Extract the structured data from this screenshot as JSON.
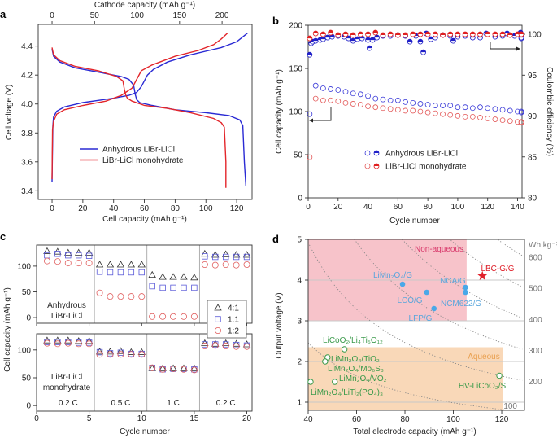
{
  "chart_data": [
    {
      "panel_label": "a",
      "type": "line",
      "xlabel": "Cell capacity (mAh g⁻¹)",
      "x2label": "Cathode capacity (mAh g⁻¹)",
      "ylabel": "Cell voltage (V)",
      "xlim": [
        -9,
        130
      ],
      "ylim": [
        3.34,
        4.55
      ],
      "xticks": [
        "0",
        "20",
        "40",
        "60",
        "80",
        "100",
        "120"
      ],
      "x2ticks": [
        "0",
        "50",
        "100",
        "150",
        "200"
      ],
      "cathode_per_cell_capacity": 1.81,
      "yticks": [
        "3.4",
        "3.6",
        "3.8",
        "4.0",
        "4.2",
        "4.4"
      ],
      "legend": "center-left",
      "series": [
        {
          "name": "Anhydrous LiBr-LiCl",
          "color": "#2a2ad4",
          "charge": [
            [
              0,
              3.46
            ],
            [
              0.5,
              3.85
            ],
            [
              1,
              3.91
            ],
            [
              3,
              3.95
            ],
            [
              8,
              3.98
            ],
            [
              20,
              4.01
            ],
            [
              40,
              4.04
            ],
            [
              50,
              4.06
            ],
            [
              55,
              4.08
            ],
            [
              58,
              4.12
            ],
            [
              62,
              4.2
            ],
            [
              66,
              4.24
            ],
            [
              75,
              4.29
            ],
            [
              90,
              4.34
            ],
            [
              110,
              4.39
            ],
            [
              120,
              4.43
            ],
            [
              127,
              4.49
            ]
          ],
          "discharge": [
            [
              0,
              4.38
            ],
            [
              1,
              4.33
            ],
            [
              5,
              4.29
            ],
            [
              15,
              4.25
            ],
            [
              30,
              4.22
            ],
            [
              45,
              4.19
            ],
            [
              50,
              4.17
            ],
            [
              53,
              4.13
            ],
            [
              54,
              4.07
            ],
            [
              55,
              4.03
            ],
            [
              57,
              4.01
            ],
            [
              65,
              3.99
            ],
            [
              80,
              3.96
            ],
            [
              100,
              3.94
            ],
            [
              115,
              3.92
            ],
            [
              122,
              3.89
            ],
            [
              124,
              3.85
            ],
            [
              125,
              3.6
            ],
            [
              126,
              3.43
            ]
          ]
        },
        {
          "name": "LiBr-LiCl monohydrate",
          "color": "#e3262b",
          "charge": [
            [
              0,
              3.48
            ],
            [
              0.3,
              3.82
            ],
            [
              1,
              3.88
            ],
            [
              3,
              3.93
            ],
            [
              8,
              3.96
            ],
            [
              20,
              3.99
            ],
            [
              35,
              4.02
            ],
            [
              45,
              4.06
            ],
            [
              52,
              4.11
            ],
            [
              55,
              4.17
            ],
            [
              58,
              4.23
            ],
            [
              65,
              4.27
            ],
            [
              80,
              4.33
            ],
            [
              95,
              4.37
            ],
            [
              105,
              4.41
            ],
            [
              110,
              4.45
            ],
            [
              114,
              4.49
            ]
          ],
          "discharge": [
            [
              0,
              4.39
            ],
            [
              1,
              4.34
            ],
            [
              5,
              4.3
            ],
            [
              15,
              4.26
            ],
            [
              30,
              4.23
            ],
            [
              42,
              4.19
            ],
            [
              46,
              4.16
            ],
            [
              47,
              4.1
            ],
            [
              48,
              4.06
            ],
            [
              49,
              4.04
            ],
            [
              52,
              4.02
            ],
            [
              60,
              3.99
            ],
            [
              75,
              3.97
            ],
            [
              90,
              3.94
            ],
            [
              105,
              3.9
            ],
            [
              110,
              3.87
            ],
            [
              112,
              3.84
            ],
            [
              113,
              3.6
            ],
            [
              113,
              3.42
            ]
          ]
        }
      ]
    },
    {
      "panel_label": "b",
      "type": "scatter",
      "xlabel": "Cycle number",
      "ylabel": "Cell capacity (mAh g⁻¹)",
      "y2label": "Coulombic efficiency (%)",
      "xlim": [
        0,
        143
      ],
      "ylim": [
        0,
        200
      ],
      "y2lim": [
        80,
        101.1
      ],
      "xticks": [
        "0",
        "20",
        "40",
        "60",
        "80",
        "100",
        "120",
        "140"
      ],
      "yticks": [
        "0",
        "50",
        "100",
        "150",
        "200"
      ],
      "y2ticks": [
        "80",
        "85",
        "90",
        "95",
        "100"
      ],
      "legend": "center",
      "series": [
        {
          "name": "Anhydrous LiBr-LiCl",
          "metric": "capacity",
          "axis": "left",
          "marker": "open-circle",
          "color": "#3b3bd8",
          "x": [
            1,
            5,
            10,
            15,
            20,
            25,
            30,
            35,
            40,
            45,
            50,
            55,
            60,
            65,
            70,
            75,
            80,
            85,
            90,
            95,
            100,
            105,
            110,
            115,
            120,
            125,
            130,
            135,
            140,
            145,
            150
          ],
          "y": [
            97,
            130,
            127,
            126,
            125,
            123,
            121,
            120,
            118,
            115,
            114,
            113,
            113,
            111,
            110,
            109,
            108,
            107,
            107,
            107,
            105,
            105,
            104,
            105,
            104,
            103,
            102,
            101,
            100,
            99,
            100
          ]
        },
        {
          "name": "LiBr-LiCl monohydrate",
          "metric": "capacity",
          "axis": "left",
          "marker": "open-circle",
          "color": "#e35a5a",
          "x": [
            1,
            5,
            10,
            15,
            20,
            25,
            30,
            35,
            40,
            45,
            50,
            55,
            60,
            65,
            70,
            75,
            80,
            85,
            90,
            95,
            100,
            105,
            110,
            115,
            120,
            125,
            130,
            135,
            140,
            145,
            150
          ],
          "y": [
            47,
            115,
            113,
            113,
            112,
            110,
            109,
            108,
            106,
            105,
            104,
            103,
            102,
            101,
            101,
            100,
            99,
            98,
            97,
            96,
            95,
            94,
            94,
            93,
            92,
            91,
            90,
            89,
            88,
            88,
            87
          ]
        },
        {
          "name": "Anhydrous LiBr-LiCl",
          "metric": "coulombic_efficiency",
          "axis": "right",
          "marker": "half-filled-circle",
          "color": "#2020c8",
          "x": [
            1,
            2,
            3,
            5,
            8,
            10,
            13,
            16,
            20,
            24,
            27,
            30,
            33,
            36,
            40,
            41,
            43,
            46,
            50,
            55,
            60,
            65,
            68,
            72,
            75,
            77,
            79,
            82,
            85,
            90,
            95,
            97,
            100,
            105,
            110,
            115,
            119,
            125,
            130,
            133,
            138,
            142,
            145,
            148,
            150
          ],
          "y": [
            97.5,
            98.9,
            99.1,
            99.2,
            99.3,
            99.4,
            99.6,
            99.7,
            99.8,
            99.7,
            99.5,
            99.2,
            99.4,
            99.5,
            99.3,
            98.3,
            99.3,
            99.6,
            99.8,
            99.8,
            99.9,
            99.8,
            99.1,
            99.8,
            99.1,
            97.8,
            100.1,
            99.4,
            99.6,
            99.9,
            99.8,
            99.2,
            99.7,
            99.8,
            99.6,
            99.6,
            100.1,
            99.7,
            99.8,
            100.1,
            99.8,
            100.2,
            99.5,
            100.0,
            99.6
          ]
        },
        {
          "name": "LiBr-LiCl monohydrate",
          "metric": "coulombic_efficiency",
          "axis": "right",
          "marker": "half-filled-circle",
          "color": "#e02020",
          "x": [
            1,
            5,
            10,
            15,
            20,
            25,
            30,
            35,
            40,
            45,
            50,
            55,
            60,
            65,
            70,
            75,
            80,
            85,
            90,
            95,
            100,
            105,
            110,
            115,
            120,
            125,
            130,
            135,
            140,
            145,
            150
          ],
          "y": [
            99.5,
            100.1,
            100.0,
            100.2,
            99.9,
            100.0,
            99.9,
            100.0,
            100.0,
            100.2,
            99.9,
            100.0,
            99.9,
            99.9,
            100.0,
            100.0,
            100.0,
            100.0,
            99.9,
            100.0,
            100.0,
            100.0,
            100.0,
            100.0,
            100.0,
            100.0,
            100.0,
            99.9,
            100.0,
            100.0,
            100.0
          ]
        }
      ]
    },
    {
      "panel_label": "c",
      "type": "scatter",
      "xlabel": "Cycle number",
      "ylabel": "Cell capacity (mAh g⁻¹)",
      "xlim": [
        0,
        20.5
      ],
      "xticks": [
        "0",
        "5",
        "10",
        "15",
        "20"
      ],
      "yticks": [
        "0",
        "50",
        "100"
      ],
      "rate_labels": [
        "0.2 C",
        "0.5 C",
        "1 C",
        "0.2 C"
      ],
      "rate_boundaries": [
        5.5,
        10.5,
        15.5
      ],
      "legend_position": "right",
      "legend": [
        {
          "label": "4:1",
          "marker": "triangle",
          "color": "#333333"
        },
        {
          "label": "1:1",
          "marker": "square",
          "color": "#5a5ad8"
        },
        {
          "label": "1:2",
          "marker": "circle",
          "color": "#e06060"
        }
      ],
      "subplots": [
        {
          "label_lines": [
            "Anhydrous",
            "LiBr-LiCl"
          ],
          "ylim": [
            -11,
            141
          ],
          "series": [
            {
              "name": "4:1",
              "y": [
                129,
                128,
                126,
                126,
                126,
                103,
                103,
                103,
                103,
                103,
                83,
                79,
                79,
                79,
                78,
                124,
                122,
                123,
                122,
                122
              ]
            },
            {
              "name": "1:1",
              "y": [
                121,
                124,
                121,
                121,
                120,
                89,
                88,
                88,
                88,
                88,
                61,
                58,
                58,
                58,
                58,
                119,
                118,
                118,
                118,
                118
              ]
            },
            {
              "name": "1:2",
              "y": [
                110,
                109,
                106,
                106,
                106,
                48,
                41,
                41,
                41,
                41,
                2,
                2,
                2,
                2,
                2,
                103,
                102,
                103,
                102,
                103
              ]
            }
          ]
        },
        {
          "label_lines": [
            "LiBr-LiCl",
            "monohydrate"
          ],
          "ylim": [
            -10,
            129
          ],
          "series": [
            {
              "name": "4:1",
              "y": [
                117,
                117,
                117,
                116,
                116,
                97,
                97,
                98,
                96,
                96,
                67,
                67,
                67,
                67,
                67,
                112,
                111,
                112,
                111,
                110
              ]
            },
            {
              "name": "1:1",
              "y": [
                114,
                114,
                114,
                113,
                113,
                96,
                94,
                95,
                93,
                93,
                68,
                65,
                66,
                66,
                65,
                110,
                110,
                110,
                109,
                108
              ]
            },
            {
              "name": "1:2",
              "y": [
                112,
                111,
                112,
                111,
                111,
                92,
                92,
                92,
                92,
                92,
                68,
                65,
                66,
                65,
                64,
                107,
                108,
                107,
                106,
                106
              ]
            }
          ]
        }
      ]
    },
    {
      "panel_label": "d",
      "type": "scatter",
      "xlabel": "Total electrode capacity (mAh g⁻¹)",
      "ylabel": "Output voltage (V)",
      "y2label": "Wh kg⁻¹",
      "xlim": [
        40,
        129.4
      ],
      "ylim": [
        0.8,
        5
      ],
      "xticks": [
        "40",
        "60",
        "80",
        "100",
        "120"
      ],
      "yticks": [
        "1",
        "2",
        "3",
        "4",
        "5"
      ],
      "energy_contours": [
        "100",
        "200",
        "300",
        "400",
        "500",
        "600"
      ],
      "regions": [
        {
          "label": "Non-aqueous",
          "x": [
            40,
            105.5
          ],
          "y": [
            3,
            5
          ],
          "color": "#f7c3ca",
          "text_color": "#d8386a"
        },
        {
          "label": "Aqueous",
          "x": [
            40,
            120.5
          ],
          "y": [
            0.8,
            2.35
          ],
          "color": "#f9d8b8",
          "text_color": "#e9a050"
        }
      ],
      "points": [
        {
          "label": "LiMn₂O₄/G",
          "x": 79,
          "y": 3.9,
          "group": "non-aqueous"
        },
        {
          "label": "LCO/G",
          "x": 89,
          "y": 3.7,
          "group": "non-aqueous"
        },
        {
          "label": "NCA/G",
          "x": 105,
          "y": 3.82,
          "group": "non-aqueous"
        },
        {
          "label": "NCM622/G",
          "x": 105,
          "y": 3.7,
          "group": "non-aqueous"
        },
        {
          "label": "LFP/G",
          "x": 92,
          "y": 3.3,
          "group": "non-aqueous"
        },
        {
          "label": "LBC-G/G",
          "x": 112,
          "y": 4.1,
          "group": "this-work"
        },
        {
          "label": "LiCoO₂/Li₄Ti₅O₁₂",
          "x": 55,
          "y": 2.3,
          "group": "aqueous"
        },
        {
          "label": "LiMn₂O₄/TiO₂",
          "x": 48,
          "y": 2.1,
          "group": "aqueous"
        },
        {
          "label": "LiMn₂O₄/Mo₆S₈",
          "x": 47,
          "y": 2.0,
          "group": "aqueous"
        },
        {
          "label": "LiMn₂O₄/VO₂",
          "x": 51,
          "y": 1.5,
          "group": "aqueous"
        },
        {
          "label": "LiMn₂O₄/LiTi₂(PO₄)₃",
          "x": 41,
          "y": 1.5,
          "group": "aqueous"
        },
        {
          "label": "HV-LiCoO₂/S",
          "x": 119,
          "y": 1.65,
          "group": "aqueous"
        }
      ],
      "colors": {
        "non-aqueous": "#4aa8e8",
        "non-aqueous-label": "#5aa6dc",
        "this-work": "#e0202a",
        "aqueous": "#3a9a4a"
      }
    }
  ]
}
